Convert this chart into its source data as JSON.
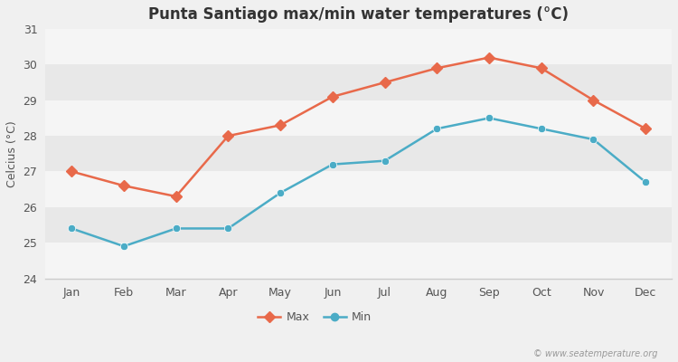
{
  "title": "Punta Santiago max/min water temperatures (°C)",
  "ylabel": "Celcius (°C)",
  "months": [
    "Jan",
    "Feb",
    "Mar",
    "Apr",
    "May",
    "Jun",
    "Jul",
    "Aug",
    "Sep",
    "Oct",
    "Nov",
    "Dec"
  ],
  "max_temps": [
    27.0,
    26.6,
    26.3,
    28.0,
    28.3,
    29.1,
    29.5,
    29.9,
    30.2,
    29.9,
    29.0,
    28.2
  ],
  "min_temps": [
    25.4,
    24.9,
    25.4,
    25.4,
    26.4,
    27.2,
    27.3,
    28.2,
    28.5,
    28.2,
    27.9,
    26.7
  ],
  "max_color": "#e8694a",
  "min_color": "#4bacc6",
  "bg_color": "#f0f0f0",
  "band_light": "#f5f5f5",
  "band_dark": "#e8e8e8",
  "ylim": [
    24,
    31
  ],
  "yticks": [
    24,
    25,
    26,
    27,
    28,
    29,
    30,
    31
  ],
  "watermark": "© www.seatemperature.org",
  "legend_max": "Max",
  "legend_min": "Min",
  "marker_size": 6,
  "linewidth": 1.8
}
